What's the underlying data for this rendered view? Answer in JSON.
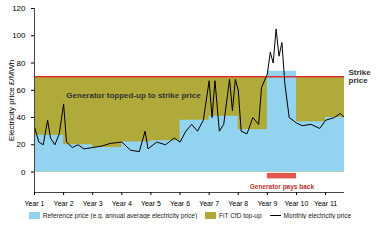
{
  "chart_data": {
    "type": "area",
    "y_label": "Electricity price £/MWh",
    "xlim": [
      1,
      11.65
    ],
    "xticks": [
      {
        "value": 1,
        "label": "Year 1"
      },
      {
        "value": 2,
        "label": "Year 2"
      },
      {
        "value": 3,
        "label": "Year 3"
      },
      {
        "value": 4,
        "label": "Year 4"
      },
      {
        "value": 5,
        "label": "Year 5"
      },
      {
        "value": 6,
        "label": "Year 6"
      },
      {
        "value": 7,
        "label": "Year 7"
      },
      {
        "value": 8,
        "label": "Year 8"
      },
      {
        "value": 9,
        "label": "Year 9"
      },
      {
        "value": 10,
        "label": "Year 10"
      },
      {
        "value": 11,
        "label": "Year 11"
      }
    ],
    "ylim": [
      -15,
      120
    ],
    "yticks": [
      0,
      20,
      40,
      60,
      80,
      100,
      120
    ],
    "grid": false,
    "legend": "bottom",
    "series": [
      {
        "name": "Reference price (e.g. annual average electricity price)",
        "type": "area",
        "line_style": "step",
        "color": "#92d3ef",
        "x": [
          1,
          2,
          3,
          4,
          5,
          6,
          7,
          8,
          9,
          10,
          11,
          11.65
        ],
        "values": [
          27,
          20,
          18,
          22,
          23,
          38,
          41,
          31,
          74,
          37,
          40,
          40
        ]
      },
      {
        "name": "FiT CfD top-up",
        "type": "area",
        "color": "#afaa3a"
      },
      {
        "name": "Monthly electricity price",
        "type": "line",
        "color": "#000000",
        "x": [
          1.0,
          1.15,
          1.3,
          1.45,
          1.55,
          1.7,
          1.85,
          2.0,
          2.1,
          2.3,
          2.5,
          2.7,
          3.0,
          3.3,
          3.6,
          4.0,
          4.3,
          4.6,
          4.8,
          4.9,
          5.2,
          5.5,
          5.8,
          6.0,
          6.2,
          6.4,
          6.6,
          6.8,
          7.0,
          7.1,
          7.2,
          7.35,
          7.5,
          7.7,
          7.8,
          7.9,
          8.0,
          8.1,
          8.3,
          8.5,
          8.7,
          8.8,
          9.0,
          9.1,
          9.2,
          9.3,
          9.4,
          9.5,
          9.6,
          9.75,
          10.0,
          10.2,
          10.5,
          10.8,
          11.0,
          11.3,
          11.5,
          11.65
        ],
        "values": [
          33,
          22,
          20,
          38,
          25,
          20,
          28,
          50,
          22,
          18,
          20,
          17,
          18,
          19,
          21,
          22,
          16,
          15,
          30,
          17,
          22,
          20,
          25,
          22,
          30,
          35,
          30,
          38,
          67,
          40,
          67,
          30,
          35,
          68,
          45,
          68,
          60,
          30,
          28,
          40,
          35,
          62,
          72,
          88,
          80,
          105,
          85,
          95,
          65,
          40,
          36,
          34,
          35,
          32,
          38,
          40,
          43,
          40
        ]
      }
    ],
    "strike": {
      "value": 70,
      "label": "Strike price",
      "color": "#e2302a"
    },
    "payback": {
      "x": [
        9,
        10
      ],
      "y": [
        -1,
        -5
      ],
      "label": "Generator pays back",
      "color": "#e0584e"
    },
    "annotations": [
      {
        "text": "Generator topped-up to strike price",
        "x": 4.4,
        "y": 56
      }
    ]
  }
}
